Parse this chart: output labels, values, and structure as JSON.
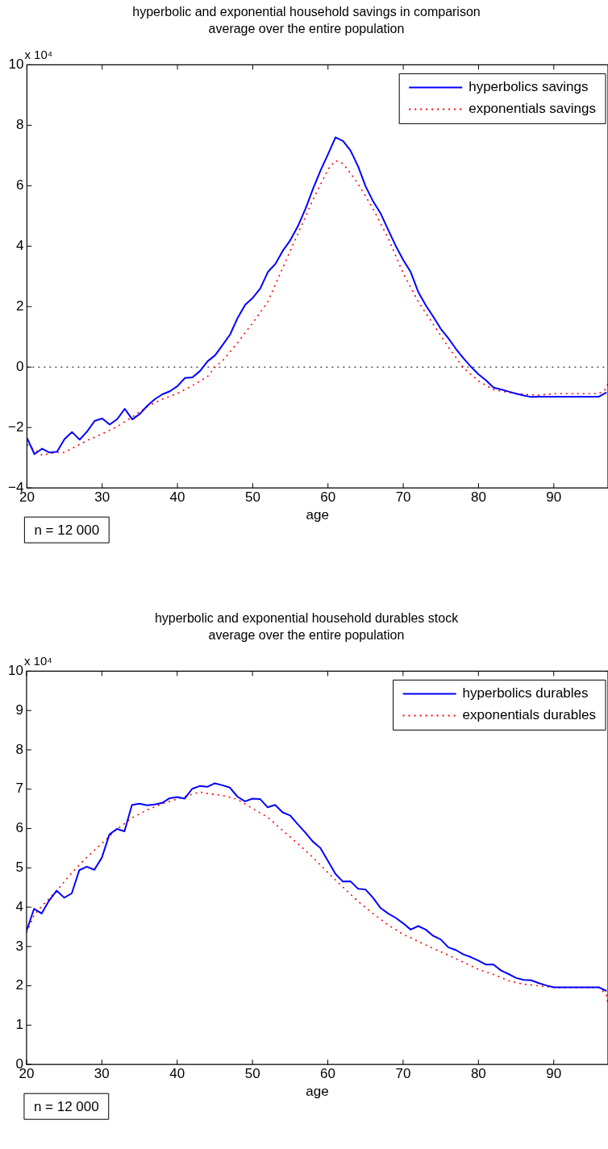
{
  "chart_data": [
    {
      "type": "line",
      "title": "hyperbolic and exponential household savings in comparison",
      "subtitle": "average over the entire population",
      "xlabel": "age",
      "xlim": [
        20,
        97.2
      ],
      "xticks": [
        20,
        30,
        40,
        50,
        60,
        70,
        80,
        90
      ],
      "ylim": [
        -4,
        10
      ],
      "yticks": [
        -4,
        -2,
        0,
        2,
        4,
        6,
        8,
        10
      ],
      "legend": "top right",
      "grid": false,
      "annotations": [
        "x 10⁴",
        "n = 12 000"
      ],
      "ref_lines": [
        {
          "axis": "y",
          "value": 0,
          "color": "#000000",
          "line_style": "dotted"
        }
      ],
      "series": [
        {
          "name": "hyperbolics savings",
          "color": "#0000ff",
          "line_style": "solid",
          "x": [
            20,
            21,
            22,
            23,
            24,
            25,
            26,
            27,
            28,
            29,
            30,
            31,
            32,
            33,
            34,
            35,
            36,
            37,
            38,
            39,
            40,
            41,
            42,
            43,
            44,
            45,
            46,
            47,
            48,
            49,
            50,
            51,
            52,
            53,
            54,
            55,
            56,
            57,
            58,
            59,
            60,
            61,
            62,
            63,
            64,
            65,
            66,
            67,
            68,
            69,
            70,
            71,
            72,
            73,
            74,
            75,
            76,
            77,
            78,
            79,
            80,
            81,
            82,
            83,
            84,
            85,
            86,
            87,
            88,
            90,
            92,
            94,
            96,
            97
          ],
          "values": [
            -2.34,
            -2.88,
            -2.7,
            -2.83,
            -2.8,
            -2.38,
            -2.15,
            -2.4,
            -2.13,
            -1.78,
            -1.7,
            -1.9,
            -1.72,
            -1.38,
            -1.73,
            -1.55,
            -1.28,
            -1.06,
            -0.9,
            -0.8,
            -0.63,
            -0.36,
            -0.34,
            -0.13,
            0.19,
            0.39,
            0.73,
            1.08,
            1.63,
            2.06,
            2.29,
            2.6,
            3.14,
            3.41,
            3.85,
            4.2,
            4.66,
            5.23,
            5.89,
            6.5,
            7.04,
            7.6,
            7.48,
            7.16,
            6.64,
            5.98,
            5.48,
            5.08,
            4.54,
            4.01,
            3.54,
            3.14,
            2.48,
            2.04,
            1.66,
            1.26,
            0.95,
            0.6,
            0.29,
            0.01,
            -0.24,
            -0.44,
            -0.68,
            -0.74,
            -0.81,
            -0.88,
            -0.94,
            -0.99,
            -0.98,
            -0.98,
            -0.98,
            -0.98,
            -0.98,
            -0.84
          ]
        },
        {
          "name": "exponentials savings",
          "color": "#ff0000",
          "line_style": "dotted",
          "x": [
            20,
            22,
            24,
            25,
            26,
            28,
            30,
            32,
            34,
            36,
            38,
            40,
            42,
            44,
            45,
            46,
            48,
            50,
            52,
            54,
            56,
            58,
            60,
            61,
            62,
            63,
            64,
            66,
            68,
            70,
            72,
            74,
            76,
            78,
            80,
            82,
            84,
            86,
            88,
            90,
            92,
            94,
            96,
            97,
            97.2
          ],
          "values": [
            -2.56,
            -2.91,
            -2.82,
            -2.82,
            -2.69,
            -2.43,
            -2.21,
            -1.97,
            -1.65,
            -1.3,
            -1.06,
            -0.87,
            -0.61,
            -0.31,
            0.0,
            0.21,
            0.81,
            1.46,
            2.16,
            3.29,
            4.41,
            5.54,
            6.54,
            6.83,
            6.73,
            6.41,
            6.06,
            5.23,
            4.26,
            3.1,
            2.16,
            1.41,
            0.66,
            -0.03,
            -0.46,
            -0.75,
            -0.84,
            -0.9,
            -0.93,
            -0.88,
            -0.88,
            -0.88,
            -0.88,
            -0.71,
            -0.53
          ]
        }
      ]
    },
    {
      "type": "line",
      "title": "hyperbolic and exponential household durables stock",
      "subtitle": "average over the entire population",
      "xlabel": "age",
      "xlim": [
        20,
        97.2
      ],
      "xticks": [
        20,
        30,
        40,
        50,
        60,
        70,
        80,
        90
      ],
      "ylim": [
        0,
        10
      ],
      "yticks": [
        0,
        1,
        2,
        3,
        4,
        5,
        6,
        7,
        8,
        9,
        10
      ],
      "legend": "top right",
      "grid": false,
      "annotations": [
        "x 10⁴",
        "n = 12 000"
      ],
      "series": [
        {
          "name": "hyperbolics durables",
          "color": "#0000ff",
          "line_style": "solid",
          "x": [
            20,
            21,
            22,
            23,
            24,
            25,
            26,
            27,
            28,
            29,
            30,
            31,
            32,
            33,
            34,
            35,
            36,
            37,
            38,
            39,
            40,
            41,
            42,
            43,
            44,
            45,
            46,
            47,
            48,
            49,
            50,
            51,
            52,
            53,
            54,
            55,
            56,
            57,
            58,
            59,
            60,
            61,
            62,
            63,
            64,
            65,
            66,
            67,
            68,
            69,
            70,
            71,
            72,
            73,
            74,
            75,
            76,
            77,
            78,
            79,
            80,
            81,
            82,
            83,
            84,
            85,
            86,
            87,
            88,
            89,
            90,
            92,
            94,
            96,
            97
          ],
          "values": [
            3.4,
            3.96,
            3.84,
            4.17,
            4.42,
            4.24,
            4.35,
            4.94,
            5.03,
            4.95,
            5.26,
            5.85,
            5.99,
            5.93,
            6.6,
            6.63,
            6.59,
            6.61,
            6.65,
            6.77,
            6.8,
            6.76,
            7.01,
            7.08,
            7.06,
            7.15,
            7.1,
            7.04,
            6.81,
            6.69,
            6.76,
            6.75,
            6.54,
            6.6,
            6.41,
            6.33,
            6.11,
            5.9,
            5.67,
            5.51,
            5.18,
            4.85,
            4.65,
            4.66,
            4.47,
            4.45,
            4.24,
            3.98,
            3.84,
            3.73,
            3.59,
            3.43,
            3.52,
            3.43,
            3.27,
            3.18,
            2.98,
            2.91,
            2.8,
            2.73,
            2.64,
            2.54,
            2.54,
            2.39,
            2.3,
            2.2,
            2.15,
            2.14,
            2.07,
            2.01,
            1.96,
            1.96,
            1.96,
            1.96,
            1.87
          ]
        },
        {
          "name": "exponentials durables",
          "color": "#ff0000",
          "line_style": "dotted",
          "x": [
            20,
            21,
            22,
            24,
            26,
            28,
            30,
            32,
            34,
            36,
            38,
            40,
            42,
            43,
            44,
            46,
            48,
            50,
            52,
            54,
            56,
            58,
            60,
            62,
            64,
            66,
            68,
            70,
            72,
            74,
            76,
            78,
            80,
            82,
            84,
            86,
            88,
            90,
            92,
            94,
            96,
            97,
            97.2
          ],
          "values": [
            3.35,
            3.8,
            4.02,
            4.42,
            4.87,
            5.27,
            5.62,
            5.98,
            6.27,
            6.47,
            6.63,
            6.75,
            6.87,
            6.93,
            6.89,
            6.84,
            6.74,
            6.51,
            6.29,
            5.95,
            5.62,
            5.27,
            4.88,
            4.51,
            4.15,
            3.84,
            3.55,
            3.31,
            3.13,
            2.95,
            2.78,
            2.6,
            2.42,
            2.29,
            2.13,
            2.04,
            2.0,
            1.96,
            1.96,
            1.96,
            1.96,
            1.77,
            1.49
          ]
        }
      ]
    }
  ]
}
